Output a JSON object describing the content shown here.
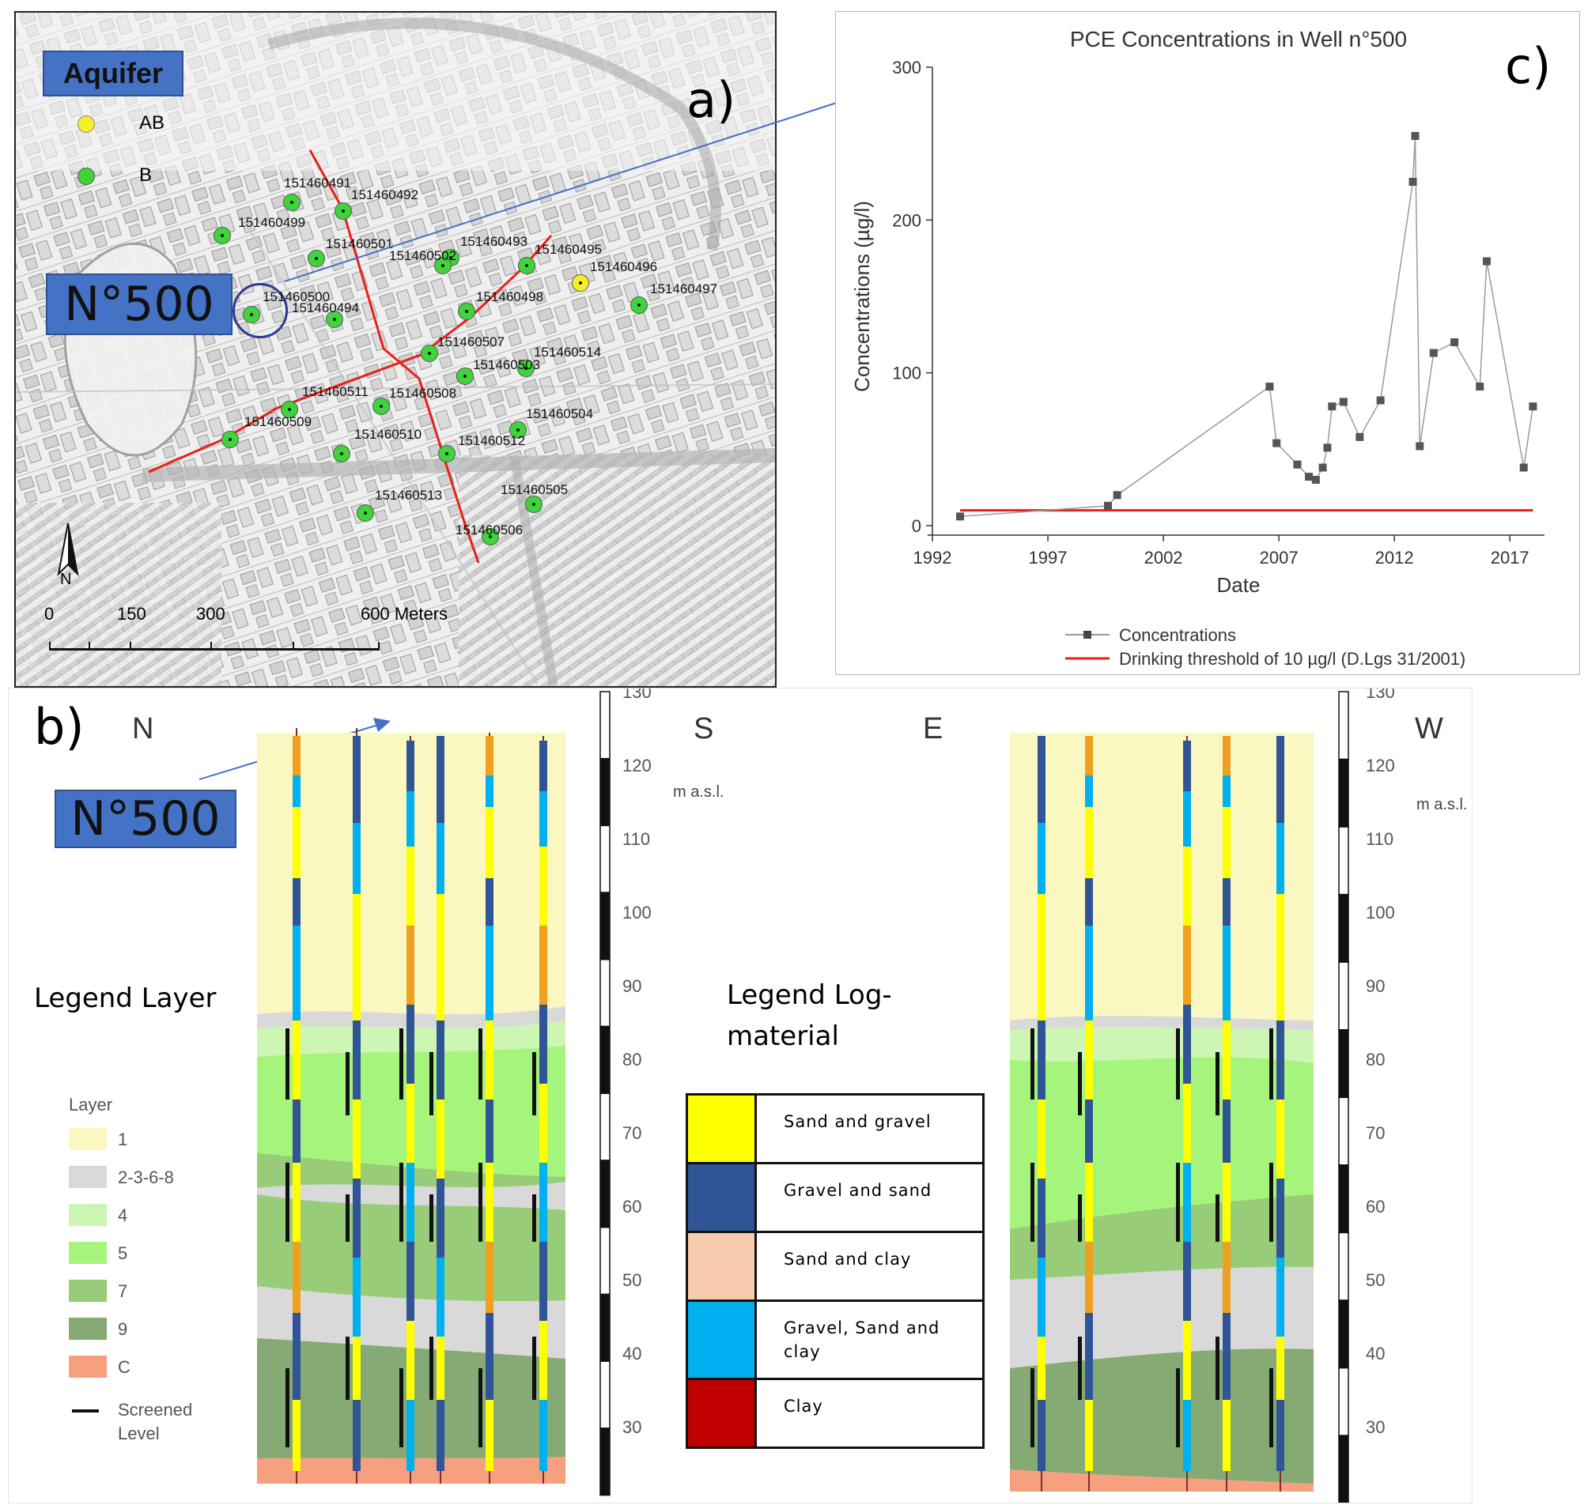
{
  "panel_a": {
    "label": "a)",
    "legend_title": "Aquifer",
    "legend_items": [
      {
        "label": "AB",
        "color": "#f5ef2a"
      },
      {
        "label": "B",
        "color": "#3fd43c"
      }
    ],
    "well_callout": "N°500",
    "wells": [
      {
        "id": "151460491",
        "type": "B"
      },
      {
        "id": "151460492",
        "type": "B"
      },
      {
        "id": "151460499",
        "type": "B"
      },
      {
        "id": "151460501",
        "type": "B"
      },
      {
        "id": "151460493",
        "type": "B"
      },
      {
        "id": "151460495",
        "type": "B"
      },
      {
        "id": "151460502",
        "type": "B"
      },
      {
        "id": "151460496",
        "type": "AB"
      },
      {
        "id": "151460497",
        "type": "B"
      },
      {
        "id": "151460500",
        "type": "B"
      },
      {
        "id": "151460494",
        "type": "B"
      },
      {
        "id": "151460498",
        "type": "B"
      },
      {
        "id": "151460507",
        "type": "B"
      },
      {
        "id": "151460514",
        "type": "B"
      },
      {
        "id": "151460503",
        "type": "B"
      },
      {
        "id": "151460511",
        "type": "B"
      },
      {
        "id": "151460508",
        "type": "B"
      },
      {
        "id": "151460509",
        "type": "B"
      },
      {
        "id": "151460504",
        "type": "B"
      },
      {
        "id": "151460510",
        "type": "B"
      },
      {
        "id": "151460512",
        "type": "B"
      },
      {
        "id": "151460505",
        "type": "B"
      },
      {
        "id": "151460513",
        "type": "B"
      },
      {
        "id": "151460506",
        "type": "B"
      }
    ],
    "north_label": "N",
    "scale_labels": [
      "0",
      "150",
      "300",
      "600 Meters"
    ]
  },
  "panel_b": {
    "label": "b)",
    "callout": "N°500",
    "left_section": {
      "left_dir": "N",
      "right_dir": "S"
    },
    "right_section": {
      "left_dir": "E",
      "right_dir": "W"
    },
    "axis_unit": "m a.s.l.",
    "axis_ticks": [
      "130",
      "120",
      "110",
      "100",
      "90",
      "80",
      "70",
      "60",
      "50",
      "40",
      "30"
    ],
    "legend_layer_title": "Legend Layer",
    "layer_legend_heading": "Layer",
    "layers": [
      {
        "label": "1",
        "color": "#fbf7c0"
      },
      {
        "label": "2-3-6-8",
        "color": "#d9d9d9"
      },
      {
        "label": "4",
        "color": "#cdf5b4"
      },
      {
        "label": "5",
        "color": "#a5f57c"
      },
      {
        "label": "7",
        "color": "#98cc78"
      },
      {
        "label": "9",
        "color": "#86aa74"
      },
      {
        "label": "C",
        "color": "#f7a080"
      }
    ],
    "screened_label": "Screened Level",
    "legend_log_title": "Legend Log-material",
    "log_materials": [
      {
        "label": "Sand and gravel",
        "color": "#ffff00"
      },
      {
        "label": "Gravel and sand",
        "color": "#2f5597"
      },
      {
        "label": "Sand and clay",
        "color": "#f8cbad"
      },
      {
        "label": "Gravel, Sand and clay",
        "color": "#00b0f0"
      },
      {
        "label": "Clay",
        "color": "#c00000"
      }
    ]
  },
  "panel_c": {
    "label": "c)"
  },
  "chart_data": {
    "type": "line",
    "title": "PCE Concentrations in Well n°500",
    "xlabel": "Date",
    "ylabel": "Concentrations (µg/l)",
    "xlim": [
      1992,
      2018.5
    ],
    "ylim": [
      0,
      300
    ],
    "x_ticks": [
      1992,
      1997,
      2002,
      2007,
      2012,
      2017
    ],
    "y_ticks": [
      0,
      100,
      200,
      300
    ],
    "series": [
      {
        "name": "Concentrations",
        "color": "#808080",
        "x": [
          1993.2,
          1999.6,
          2000.0,
          2006.6,
          2006.9,
          2007.8,
          2008.3,
          2008.6,
          2008.9,
          2009.1,
          2009.3,
          2009.8,
          2010.5,
          2011.4,
          2012.8,
          2012.9,
          2013.1,
          2013.7,
          2014.6,
          2015.7,
          2016.0,
          2017.6,
          2018.0
        ],
        "y": [
          6,
          13,
          20,
          91,
          54,
          40,
          32,
          30,
          38,
          51,
          78,
          81,
          58,
          82,
          225,
          255,
          52,
          113,
          120,
          91,
          173,
          38,
          78
        ]
      },
      {
        "name": "Drinking threshold of 10 µg/l (D.Lgs 31/2001)",
        "color": "#e8211a",
        "x": [
          1993.2,
          2018.0
        ],
        "y": [
          10,
          10
        ]
      }
    ],
    "legend": [
      "Concentrations",
      "Drinking threshold of 10 µg/l (D.Lgs 31/2001)"
    ]
  }
}
